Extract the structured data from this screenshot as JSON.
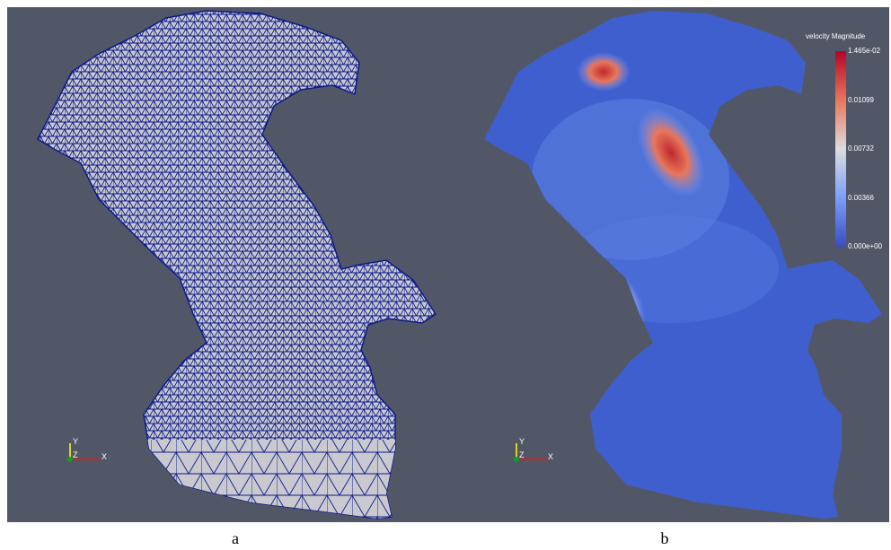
{
  "panels": [
    {
      "caption": "a",
      "axes": {
        "y": "Y",
        "z": "Z",
        "x": "X"
      }
    },
    {
      "caption": "b",
      "axes": {
        "y": "Y",
        "z": "Z",
        "x": "X"
      },
      "colorbar": {
        "title": "velocity Magnitude",
        "labels": [
          "1.465e-02",
          "0.01099",
          "0.00732",
          "0.00366",
          "0.000e+00"
        ]
      }
    }
  ]
}
